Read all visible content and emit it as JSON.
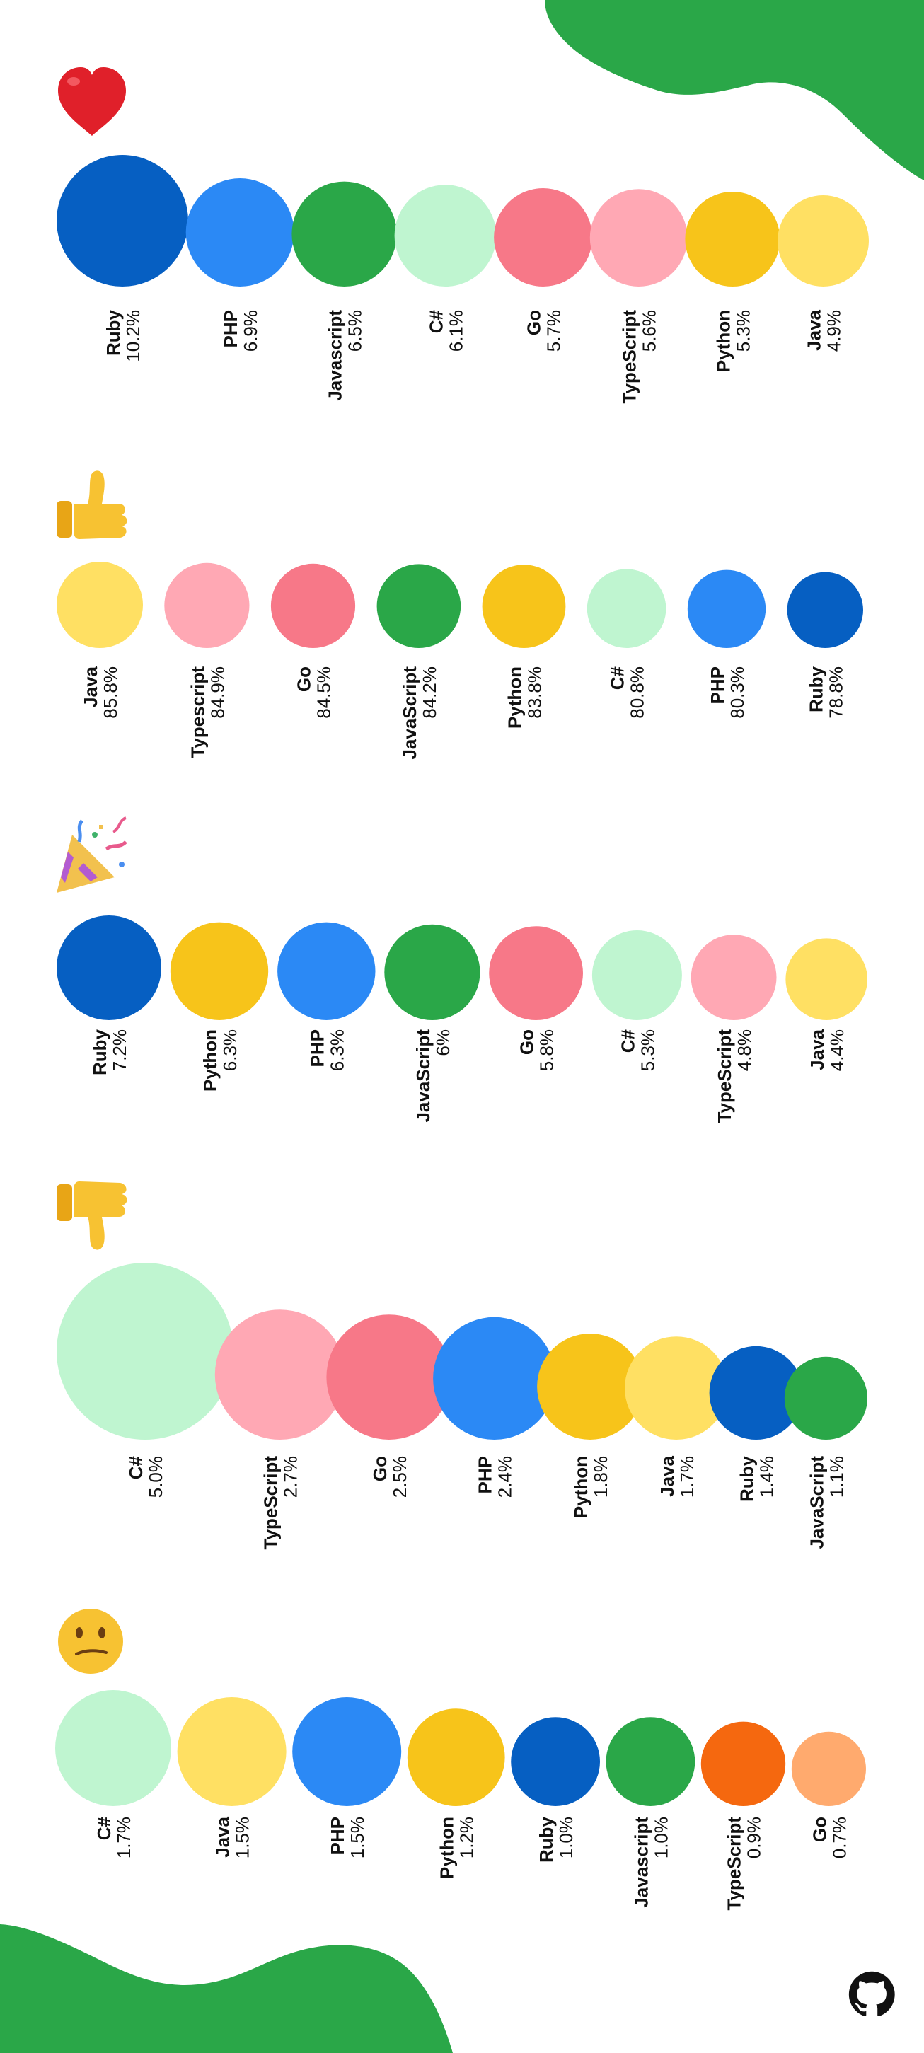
{
  "colors": {
    "background": "#ffffff",
    "blob": "#2aa748",
    "Ruby": "#065fc2",
    "PHP": "#2b89f5",
    "Javascript": "#2aa748",
    "C#": "#bff5d0",
    "Go": "#f77888",
    "TypeScript": "#ffa8b4",
    "Python": "#f7c41a",
    "Java": "#ffe063",
    "TypeScript_confused": "#f5680f",
    "Go_confused": "#ffaa6e"
  },
  "chart_data": [
    {
      "type": "bubble",
      "icon": "heart-icon",
      "series": [
        {
          "name": "Ruby",
          "value_label": "10.2%",
          "value": 10.2,
          "color_key": "Ruby"
        },
        {
          "name": "PHP",
          "value_label": "6.9%",
          "value": 6.9,
          "color_key": "PHP"
        },
        {
          "name": "Javascript",
          "value_label": "6.5%",
          "value": 6.5,
          "color_key": "Javascript"
        },
        {
          "name": "C#",
          "value_label": "6.1%",
          "value": 6.1,
          "color_key": "C#"
        },
        {
          "name": "Go",
          "value_label": "5.7%",
          "value": 5.7,
          "color_key": "Go"
        },
        {
          "name": "TypeScript",
          "value_label": "5.6%",
          "value": 5.6,
          "color_key": "TypeScript"
        },
        {
          "name": "Python",
          "value_label": "5.3%",
          "value": 5.3,
          "color_key": "Python"
        },
        {
          "name": "Java",
          "value_label": "4.9%",
          "value": 4.9,
          "color_key": "Java"
        }
      ]
    },
    {
      "type": "bubble",
      "icon": "thumbs-up-icon",
      "series": [
        {
          "name": "Java",
          "value_label": "85.8%",
          "value": 85.8,
          "color_key": "Java"
        },
        {
          "name": "Typescript",
          "value_label": "84.9%",
          "value": 84.9,
          "color_key": "TypeScript"
        },
        {
          "name": "Go",
          "value_label": "84.5%",
          "value": 84.5,
          "color_key": "Go"
        },
        {
          "name": "JavaScript",
          "value_label": "84.2%",
          "value": 84.2,
          "color_key": "Javascript"
        },
        {
          "name": "Python",
          "value_label": "83.8%",
          "value": 83.8,
          "color_key": "Python"
        },
        {
          "name": "C#",
          "value_label": "80.8%",
          "value": 80.8,
          "color_key": "C#"
        },
        {
          "name": "PHP",
          "value_label": "80.3%",
          "value": 80.3,
          "color_key": "PHP"
        },
        {
          "name": "Ruby",
          "value_label": "78.8%",
          "value": 78.8,
          "color_key": "Ruby"
        }
      ]
    },
    {
      "type": "bubble",
      "icon": "party-popper-icon",
      "series": [
        {
          "name": "Ruby",
          "value_label": "7.2%",
          "value": 7.2,
          "color_key": "Ruby"
        },
        {
          "name": "Python",
          "value_label": "6.3%",
          "value": 6.3,
          "color_key": "Python"
        },
        {
          "name": "PHP",
          "value_label": "6.3%",
          "value": 6.3,
          "color_key": "PHP"
        },
        {
          "name": "JavaScript",
          "value_label": "6%",
          "value": 6.0,
          "color_key": "Javascript"
        },
        {
          "name": "Go",
          "value_label": "5.8%",
          "value": 5.8,
          "color_key": "Go"
        },
        {
          "name": "C#",
          "value_label": "5.3%",
          "value": 5.3,
          "color_key": "C#"
        },
        {
          "name": "TypeScript",
          "value_label": "4.8%",
          "value": 4.8,
          "color_key": "TypeScript"
        },
        {
          "name": "Java",
          "value_label": "4.4%",
          "value": 4.4,
          "color_key": "Java"
        }
      ]
    },
    {
      "type": "bubble",
      "icon": "thumbs-down-icon",
      "series": [
        {
          "name": "C#",
          "value_label": "5.0%",
          "value": 5.0,
          "color_key": "C#"
        },
        {
          "name": "TypeScript",
          "value_label": "2.7%",
          "value": 2.7,
          "color_key": "TypeScript"
        },
        {
          "name": "Go",
          "value_label": "2.5%",
          "value": 2.5,
          "color_key": "Go"
        },
        {
          "name": "PHP",
          "value_label": "2.4%",
          "value": 2.4,
          "color_key": "PHP"
        },
        {
          "name": "Python",
          "value_label": "1.8%",
          "value": 1.8,
          "color_key": "Python"
        },
        {
          "name": "Java",
          "value_label": "1.7%",
          "value": 1.7,
          "color_key": "Java"
        },
        {
          "name": "Ruby",
          "value_label": "1.4%",
          "value": 1.4,
          "color_key": "Ruby"
        },
        {
          "name": "JavaScript",
          "value_label": "1.1%",
          "value": 1.1,
          "color_key": "Javascript"
        }
      ]
    },
    {
      "type": "bubble",
      "icon": "confused-face-icon",
      "series": [
        {
          "name": "C#",
          "value_label": "1.7%",
          "value": 1.7,
          "color_key": "C#"
        },
        {
          "name": "Java",
          "value_label": "1.5%",
          "value": 1.5,
          "color_key": "Java"
        },
        {
          "name": "PHP",
          "value_label": "1.5%",
          "value": 1.5,
          "color_key": "PHP"
        },
        {
          "name": "Python",
          "value_label": "1.2%",
          "value": 1.2,
          "color_key": "Python"
        },
        {
          "name": "Ruby",
          "value_label": "1.0%",
          "value": 1.0,
          "color_key": "Ruby"
        },
        {
          "name": "Javascript",
          "value_label": "1.0%",
          "value": 1.0,
          "color_key": "Javascript"
        },
        {
          "name": "TypeScript",
          "value_label": "0.9%",
          "value": 0.9,
          "color_key": "TypeScript_confused"
        },
        {
          "name": "Go",
          "value_label": "0.7%",
          "value": 0.7,
          "color_key": "Go_confused"
        }
      ]
    }
  ],
  "footer_icon": "github-icon"
}
